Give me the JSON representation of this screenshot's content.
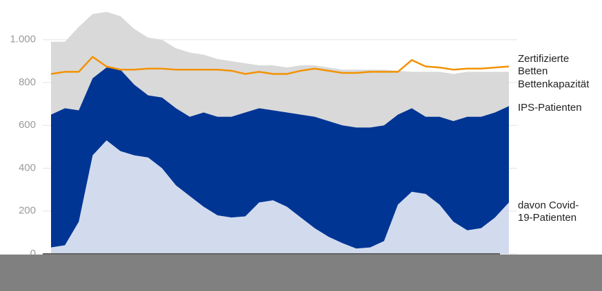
{
  "chart_data": {
    "type": "area",
    "categories": [
      null,
      null,
      null,
      null,
      null,
      null,
      null,
      null,
      null,
      null,
      null,
      null,
      null,
      null,
      null,
      null,
      null,
      null,
      null,
      null,
      null,
      null,
      null,
      null,
      null,
      null,
      null,
      null,
      null,
      null,
      null,
      null,
      null,
      null
    ],
    "ylim": [
      0,
      1150
    ],
    "yticks": [
      0,
      200,
      400,
      600,
      800,
      {
        "value": 1000,
        "label": "1.000"
      }
    ],
    "grid": true,
    "series": [
      {
        "name": "Bettenkapazität",
        "color": "#d9d9d9",
        "kind": "area",
        "values": [
          990,
          990,
          1060,
          1120,
          1130,
          1110,
          1050,
          1010,
          1000,
          960,
          940,
          930,
          910,
          900,
          890,
          880,
          880,
          870,
          880,
          880,
          870,
          860,
          860,
          860,
          860,
          855,
          850,
          850,
          850,
          840,
          850,
          850,
          850,
          850
        ]
      },
      {
        "name": "IPS-Patienten",
        "color": "#003594",
        "kind": "area",
        "values": [
          650,
          680,
          670,
          820,
          870,
          860,
          790,
          740,
          730,
          680,
          640,
          660,
          640,
          640,
          660,
          680,
          670,
          660,
          650,
          640,
          620,
          600,
          590,
          590,
          600,
          650,
          680,
          640,
          640,
          620,
          640,
          640,
          660,
          690
        ]
      },
      {
        "name": "davon Covid-19-Patienten",
        "color": "#d2dbee",
        "kind": "area",
        "values": [
          30,
          40,
          150,
          460,
          530,
          480,
          460,
          450,
          400,
          320,
          270,
          220,
          180,
          170,
          175,
          240,
          250,
          220,
          170,
          120,
          80,
          50,
          25,
          30,
          60,
          230,
          290,
          280,
          230,
          150,
          110,
          120,
          170,
          240
        ]
      },
      {
        "name": "Zertifizierte Betten",
        "color": "#f39200",
        "kind": "line",
        "values": [
          840,
          850,
          850,
          920,
          875,
          860,
          860,
          865,
          865,
          860,
          860,
          860,
          860,
          855,
          840,
          850,
          840,
          840,
          855,
          865,
          855,
          845,
          845,
          850,
          850,
          850,
          905,
          875,
          870,
          860,
          865,
          865,
          870,
          875
        ]
      }
    ]
  }
}
